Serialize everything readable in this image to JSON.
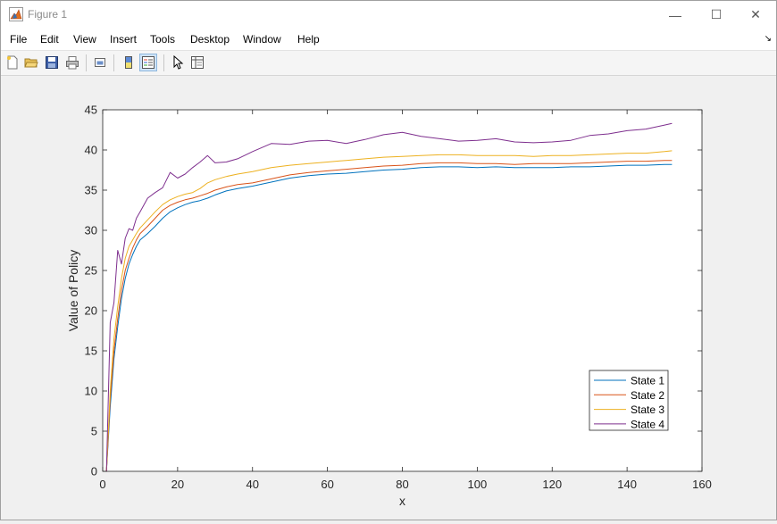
{
  "window": {
    "title": "Figure 1",
    "controls": {
      "minimize": "—",
      "maximize": "☐",
      "close": "✕"
    }
  },
  "menu": {
    "items": [
      "File",
      "Edit",
      "View",
      "Insert",
      "Tools",
      "Desktop",
      "Window",
      "Help"
    ],
    "dock_arrow": "↘"
  },
  "toolbar": {
    "buttons": [
      "new-figure-icon",
      "open-file-icon",
      "save-icon",
      "print-icon",
      "link-plot-icon",
      "insert-colorbar-icon",
      "insert-legend-icon",
      "edit-plot-icon",
      "property-inspector-icon"
    ]
  },
  "colors": {
    "state1": "#0072BD",
    "state2": "#D95319",
    "state3": "#EDB120",
    "state4": "#7E2F8E"
  },
  "chart_data": {
    "type": "line",
    "title": "",
    "xlabel": "x",
    "ylabel": "Value of Policy",
    "xlim": [
      0,
      160
    ],
    "ylim": [
      0,
      45
    ],
    "xticks": [
      0,
      20,
      40,
      60,
      80,
      100,
      120,
      140,
      160
    ],
    "yticks": [
      0,
      5,
      10,
      15,
      20,
      25,
      30,
      35,
      40,
      45
    ],
    "grid": false,
    "legend_position": "bottom-right",
    "x": [
      1,
      2,
      3,
      4,
      5,
      6,
      7,
      8,
      9,
      10,
      12,
      14,
      16,
      18,
      20,
      22,
      24,
      26,
      28,
      30,
      33,
      36,
      40,
      45,
      50,
      55,
      60,
      65,
      70,
      75,
      80,
      85,
      90,
      95,
      100,
      105,
      110,
      115,
      120,
      125,
      130,
      135,
      140,
      145,
      150,
      152
    ],
    "series": [
      {
        "name": "State 1",
        "color": "#0072BD",
        "values": [
          0,
          8,
          14,
          18,
          21.5,
          24,
          25.8,
          27,
          28,
          28.8,
          29.6,
          30.5,
          31.5,
          32.3,
          32.8,
          33.2,
          33.5,
          33.7,
          34.0,
          34.4,
          34.9,
          35.2,
          35.5,
          36.0,
          36.5,
          36.8,
          37.0,
          37.1,
          37.3,
          37.5,
          37.6,
          37.8,
          37.9,
          37.9,
          37.8,
          37.9,
          37.8,
          37.8,
          37.8,
          37.9,
          37.9,
          38.0,
          38.1,
          38.1,
          38.2,
          38.2
        ]
      },
      {
        "name": "State 2",
        "color": "#D95319",
        "values": [
          0,
          9,
          15,
          19,
          22.5,
          25,
          26.5,
          27.8,
          28.8,
          29.6,
          30.5,
          31.5,
          32.5,
          33.1,
          33.5,
          33.8,
          34.0,
          34.3,
          34.6,
          35.0,
          35.4,
          35.7,
          35.9,
          36.4,
          36.9,
          37.2,
          37.4,
          37.6,
          37.8,
          38.0,
          38.1,
          38.3,
          38.4,
          38.4,
          38.3,
          38.3,
          38.2,
          38.3,
          38.3,
          38.3,
          38.4,
          38.5,
          38.6,
          38.6,
          38.7,
          38.7
        ]
      },
      {
        "name": "State 3",
        "color": "#EDB120",
        "values": [
          0,
          10,
          16.5,
          20.5,
          24,
          26.5,
          28,
          28.8,
          29.6,
          30.3,
          31.3,
          32.3,
          33.2,
          33.8,
          34.2,
          34.5,
          34.7,
          35.2,
          35.9,
          36.3,
          36.7,
          37.0,
          37.3,
          37.8,
          38.1,
          38.3,
          38.5,
          38.7,
          38.9,
          39.1,
          39.2,
          39.3,
          39.4,
          39.4,
          39.3,
          39.3,
          39.3,
          39.2,
          39.3,
          39.3,
          39.4,
          39.5,
          39.6,
          39.6,
          39.8,
          39.9
        ]
      },
      {
        "name": "State 4",
        "color": "#7E2F8E",
        "values": [
          0,
          18.5,
          21,
          27.5,
          25.8,
          29,
          30.2,
          30.0,
          31.5,
          32.3,
          34.0,
          34.7,
          35.3,
          37.2,
          36.5,
          37.0,
          37.8,
          38.5,
          39.3,
          38.4,
          38.5,
          38.9,
          39.8,
          40.8,
          40.7,
          41.1,
          41.2,
          40.8,
          41.3,
          41.9,
          42.2,
          41.7,
          41.4,
          41.1,
          41.2,
          41.4,
          41.0,
          40.9,
          41.0,
          41.2,
          41.8,
          42.0,
          42.4,
          42.6,
          43.1,
          43.3
        ]
      }
    ]
  }
}
